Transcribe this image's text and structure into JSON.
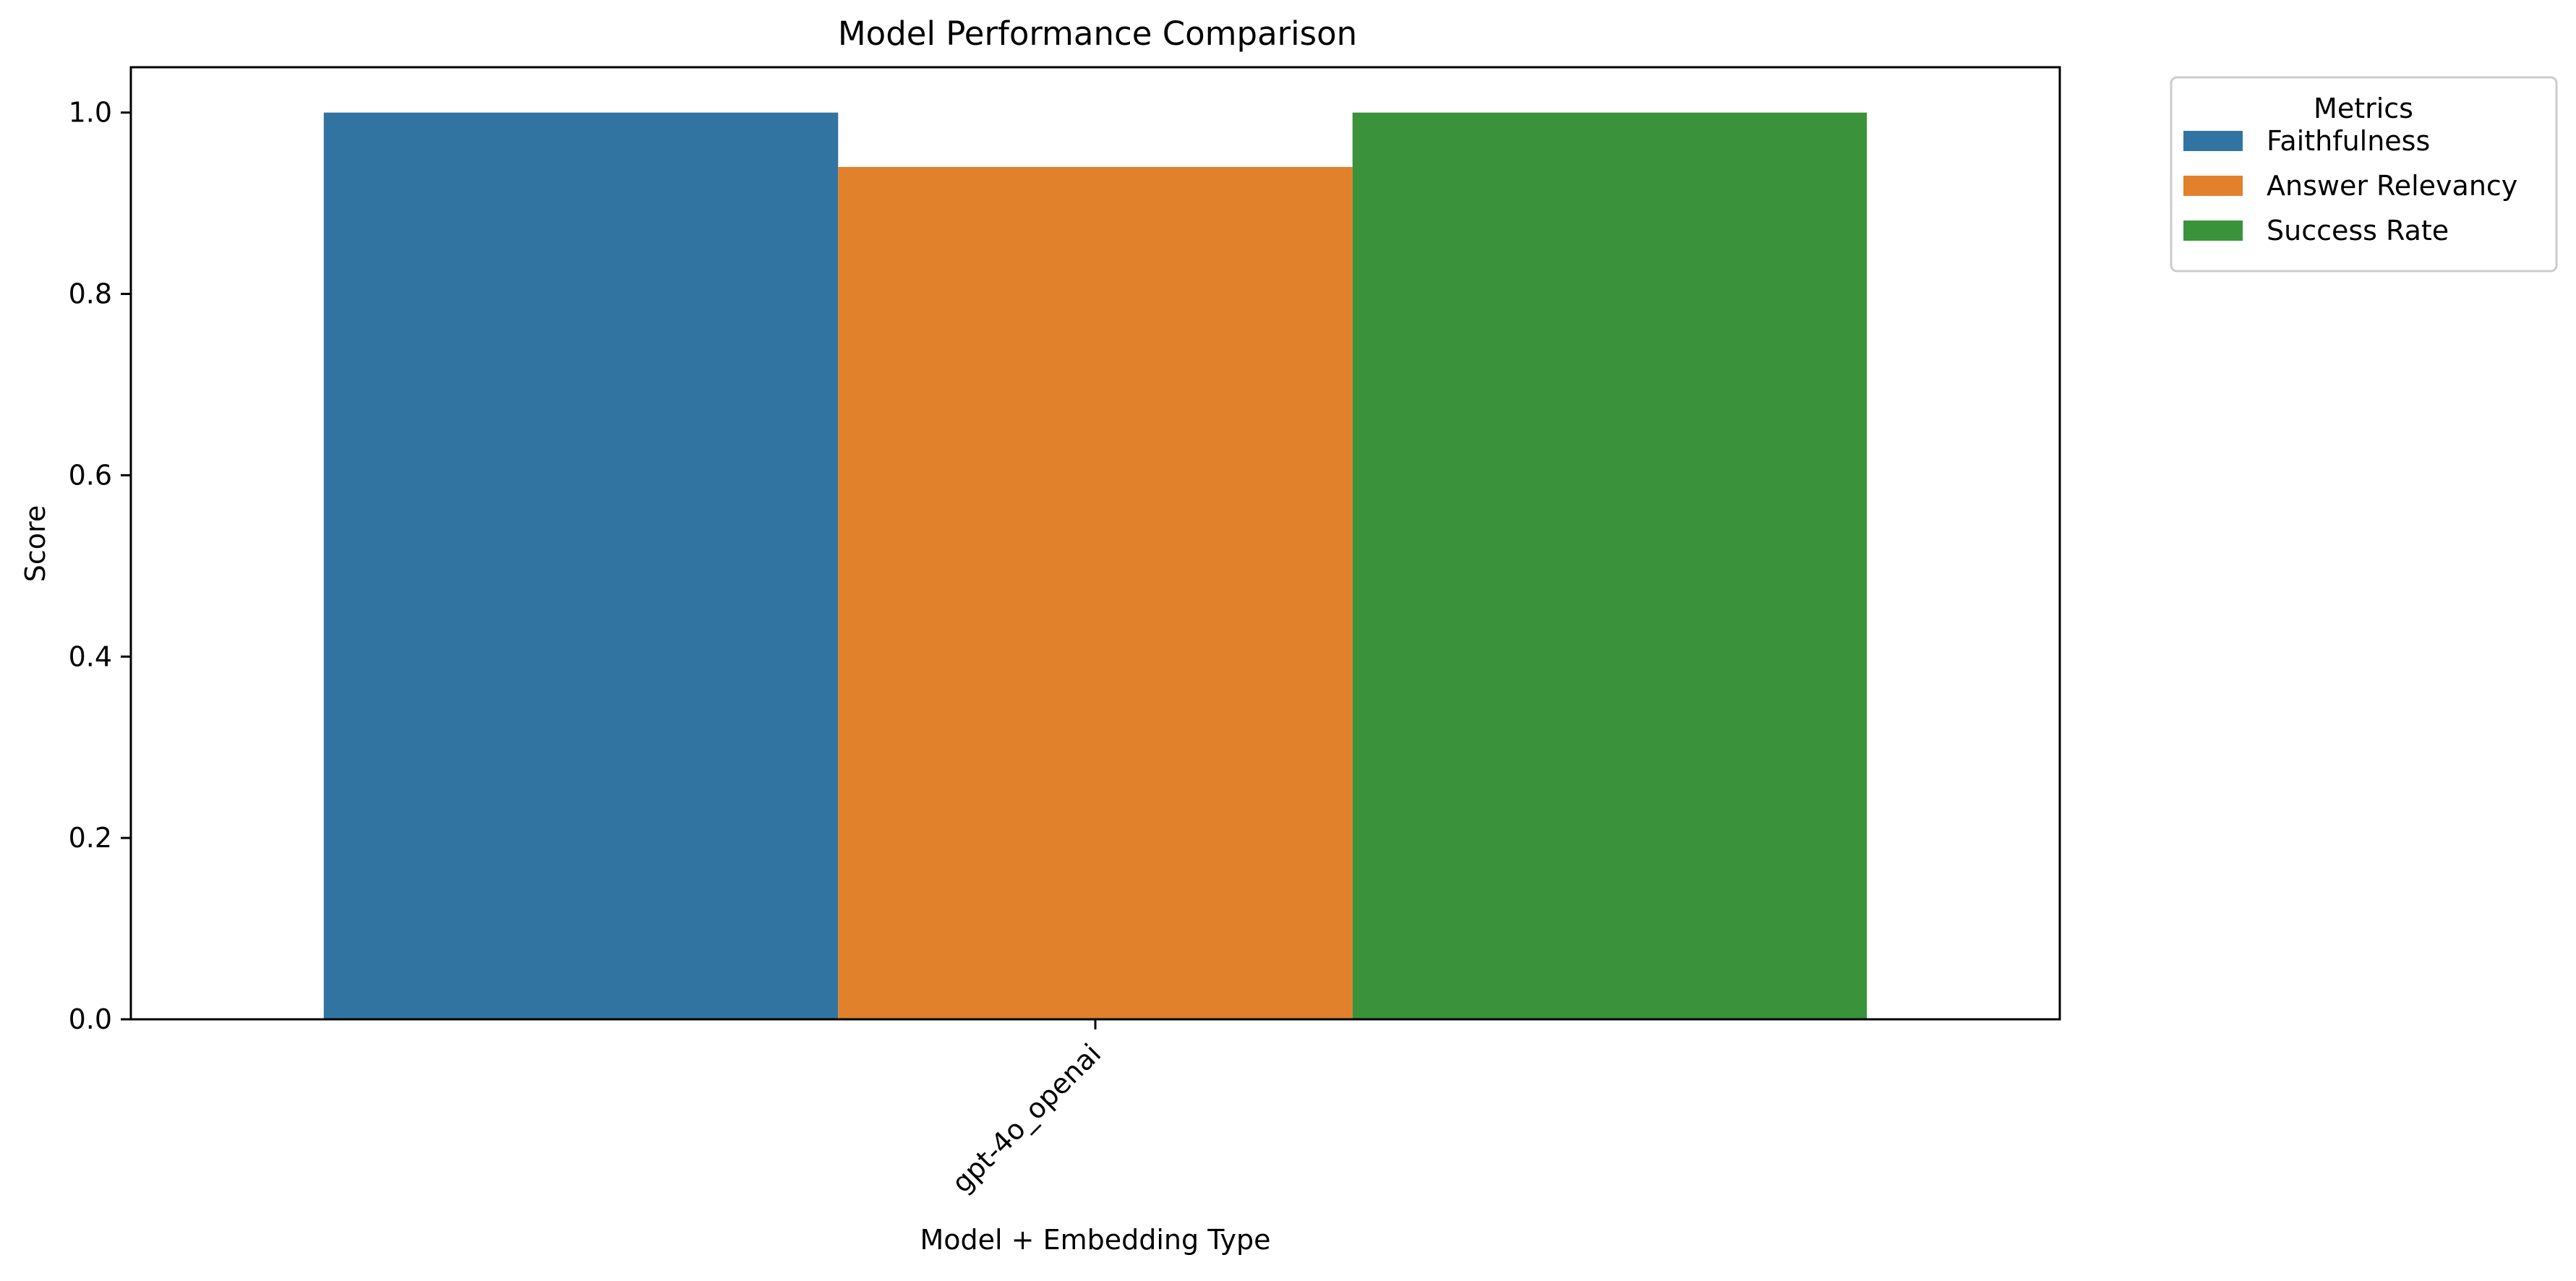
{
  "chart_data": {
    "type": "bar",
    "title": "Model Performance Comparison",
    "xlabel": "Model + Embedding Type",
    "ylabel": "Score",
    "categories": [
      "gpt-4o_openai"
    ],
    "ylim": [
      0,
      1.05
    ],
    "yticks": [
      0.0,
      0.2,
      0.4,
      0.6,
      0.8,
      1.0
    ],
    "ytick_labels": [
      "0.0",
      "0.2",
      "0.4",
      "0.6",
      "0.8",
      "1.0"
    ],
    "grid": false,
    "legend": {
      "title": "Metrics",
      "placement": "outside-top-right"
    },
    "series": [
      {
        "name": "Faithfulness",
        "color": "#3274a1",
        "values": [
          1.0
        ]
      },
      {
        "name": "Answer Relevancy",
        "color": "#e1812c",
        "values": [
          0.94
        ]
      },
      {
        "name": "Success Rate",
        "color": "#3a923a",
        "values": [
          1.0
        ]
      }
    ]
  }
}
